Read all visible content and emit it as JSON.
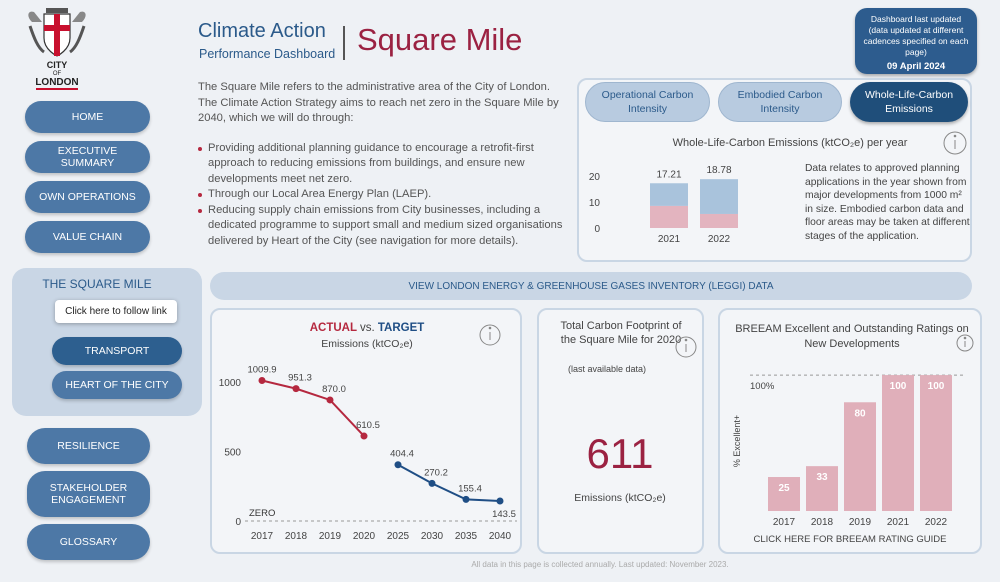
{
  "logo": {
    "line1": "CITY",
    "line2": "OF",
    "line3": "LONDON"
  },
  "header": {
    "title": "Climate Action",
    "subtitle": "Performance Dashboard",
    "title2": "Square Mile"
  },
  "update_box": {
    "text": "Dashboard last updated (data updated at different cadences specified on each page)",
    "date": "09 April 2024"
  },
  "nav": [
    "HOME",
    "EXECUTIVE SUMMARY",
    "OWN OPERATIONS",
    "VALUE CHAIN"
  ],
  "section": {
    "title": "THE SQUARE MILE",
    "tooltip": "Click here to follow link",
    "items": [
      "TRANSPORT",
      "HEART OF THE CITY"
    ]
  },
  "nav2": [
    "RESILIENCE",
    "STAKEHOLDER ENGAGEMENT",
    "GLOSSARY"
  ],
  "intro": {
    "paragraph": "The Square Mile refers to the administrative area of the City of London. The Climate Action Strategy aims to reach net zero in the Square Mile by 2040, which we will do through:",
    "bullets": [
      "Providing additional planning guidance to encourage a retrofit-first approach to reducing emissions from buildings, and ensure new developments meet net zero.",
      "Through our Local Area Energy Plan (LAEP).",
      "Reducing supply chain emissions from City businesses, including a dedicated programme to support small and medium sized organisations delivered by Heart of the City (see navigation for more details)."
    ]
  },
  "tabs": {
    "items": [
      "Operational Carbon Intensity",
      "Embodied Carbon Intensity",
      "Whole-Life-Carbon Emissions"
    ],
    "active": 2
  },
  "wlc_note": "Data relates to approved planning applications in the year shown from major developments from 1000 m² in size. Embodied carbon data and floor areas may be taken at different stages of the application.",
  "banner": "VIEW LONDON ENERGY & GREENHOUSE GASES INVENTORY (LEGGI) DATA",
  "footprint_card": {
    "title": "Total Carbon Footprint of the Square Mile for 2020",
    "note": "(last available data)",
    "value": "611",
    "unit": "Emissions (ktCO₂e)"
  },
  "footer": "All data in this page is collected annually. Last updated: November 2023.",
  "chart_data": [
    {
      "type": "stacked_bar",
      "title": "Whole-Life-Carbon Emissions (ktCO₂e) per year",
      "categories": [
        "2021",
        "2022"
      ],
      "series": [
        {
          "color": "#e3b4bf",
          "values": [
            8.5,
            5.4
          ]
        },
        {
          "color": "#a9c3dc",
          "values": [
            8.71,
            13.38
          ]
        }
      ],
      "totals": [
        17.21,
        18.78
      ],
      "ylim": [
        0,
        20
      ],
      "yticks": [
        0,
        10,
        20
      ]
    },
    {
      "type": "line",
      "title_joiner": "vs.",
      "subtitle": "Emissions (ktCO₂e)",
      "categories": [
        "2017",
        "2018",
        "2019",
        "2020",
        "2025",
        "2030",
        "2035",
        "2040"
      ],
      "series": [
        {
          "name": "ACTUAL",
          "color": "#b5283f",
          "values": [
            1009.9,
            951.3,
            870.0,
            610.5,
            null,
            null,
            null,
            null
          ],
          "value_labels": [
            "1009.9",
            "951.3",
            "870.0",
            "610.5",
            null,
            null,
            null,
            null
          ]
        },
        {
          "name": "TARGET",
          "color": "#1f4e85",
          "values": [
            null,
            null,
            null,
            null,
            404.4,
            270.2,
            155.4,
            143.5
          ]
        }
      ],
      "annotation": "ZERO",
      "ylim": [
        0,
        1150
      ],
      "yticks": [
        0,
        500,
        1000
      ]
    },
    {
      "type": "bar",
      "title": "BREEAM Excellent and Outstanding Ratings on New Developments",
      "ylabel": "% Excellent+",
      "categories": [
        "2017",
        "2018",
        "2019",
        "2021",
        "2022"
      ],
      "values": [
        25,
        33,
        80,
        100,
        100
      ],
      "color": "#e0afba",
      "ylim": [
        0,
        103
      ],
      "yticks": [
        {
          "value": 100,
          "label": "100%"
        }
      ],
      "link": "CLICK HERE FOR BREEAM RATING GUIDE"
    }
  ]
}
